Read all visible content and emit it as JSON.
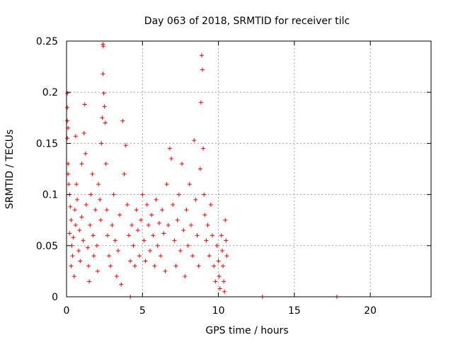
{
  "chart_data": {
    "type": "scatter",
    "title": "Day 063 of 2018, SRMTID for receiver tilc",
    "xlabel": "GPS time / hours",
    "ylabel": "SRMTID / TECUs",
    "xlim": [
      0,
      24
    ],
    "ylim": [
      0,
      0.25
    ],
    "xticks": [
      0,
      5,
      10,
      15,
      20
    ],
    "xtick_labels": [
      "0",
      "5",
      "10",
      "15",
      "20"
    ],
    "yticks": [
      0,
      0.05,
      0.1,
      0.15,
      0.2,
      0.25
    ],
    "ytick_labels": [
      "0",
      "0.05",
      "0.1",
      "0.15",
      "0.2",
      "0.25"
    ],
    "grid": true,
    "marker": "+",
    "color": "#ff0000",
    "series": [
      {
        "name": "SRMTID",
        "points": [
          [
            0.05,
            0.199
          ],
          [
            0.05,
            0.185
          ],
          [
            0.05,
            0.172
          ],
          [
            0.1,
            0.165
          ],
          [
            0.05,
            0.155
          ],
          [
            0.1,
            0.13
          ],
          [
            0.1,
            0.12
          ],
          [
            0.15,
            0.11
          ],
          [
            0.2,
            0.1
          ],
          [
            0.25,
            0.088
          ],
          [
            0.3,
            0.075
          ],
          [
            0.2,
            0.062
          ],
          [
            0.35,
            0.05
          ],
          [
            0.4,
            0.04
          ],
          [
            0.3,
            0.03
          ],
          [
            0.5,
            0.02
          ],
          [
            0.45,
            0.058
          ],
          [
            0.6,
            0.07
          ],
          [
            0.55,
            0.085
          ],
          [
            0.7,
            0.095
          ],
          [
            0.65,
            0.11
          ],
          [
            0.6,
            0.157
          ],
          [
            0.8,
            0.045
          ],
          [
            0.9,
            0.035
          ],
          [
            0.85,
            0.065
          ],
          [
            1.0,
            0.078
          ],
          [
            1.1,
            0.055
          ],
          [
            1.0,
            0.13
          ],
          [
            1.15,
            0.16
          ],
          [
            1.2,
            0.188
          ],
          [
            1.25,
            0.14
          ],
          [
            1.3,
            0.09
          ],
          [
            1.4,
            0.048
          ],
          [
            1.45,
            0.03
          ],
          [
            1.5,
            0.015
          ],
          [
            1.55,
            0.07
          ],
          [
            1.6,
            0.1
          ],
          [
            1.7,
            0.12
          ],
          [
            1.75,
            0.06
          ],
          [
            1.8,
            0.04
          ],
          [
            1.9,
            0.085
          ],
          [
            2.0,
            0.05
          ],
          [
            2.05,
            0.025
          ],
          [
            2.1,
            0.11
          ],
          [
            2.2,
            0.095
          ],
          [
            2.25,
            0.075
          ],
          [
            2.3,
            0.15
          ],
          [
            2.35,
            0.175
          ],
          [
            2.4,
            0.247
          ],
          [
            2.42,
            0.245
          ],
          [
            2.4,
            0.218
          ],
          [
            2.45,
            0.199
          ],
          [
            2.5,
            0.186
          ],
          [
            2.55,
            0.17
          ],
          [
            2.6,
            0.13
          ],
          [
            2.65,
            0.085
          ],
          [
            2.7,
            0.06
          ],
          [
            2.8,
            0.04
          ],
          [
            2.9,
            0.03
          ],
          [
            3.0,
            0.07
          ],
          [
            3.1,
            0.1
          ],
          [
            3.2,
            0.055
          ],
          [
            3.3,
            0.02
          ],
          [
            3.4,
            0.045
          ],
          [
            3.5,
            0.08
          ],
          [
            3.6,
            0.012
          ],
          [
            3.7,
            0.172
          ],
          [
            3.8,
            0.12
          ],
          [
            3.9,
            0.148
          ],
          [
            4.0,
            0.09
          ],
          [
            4.1,
            0.06
          ],
          [
            4.2,
            0.035
          ],
          [
            4.3,
            0.07
          ],
          [
            4.4,
            0.05
          ],
          [
            4.5,
            0.03
          ],
          [
            4.6,
            0.085
          ],
          [
            4.7,
            0.065
          ],
          [
            4.8,
            0.04
          ],
          [
            4.9,
            0.075
          ],
          [
            5.0,
            0.1
          ],
          [
            5.1,
            0.055
          ],
          [
            5.2,
            0.035
          ],
          [
            5.3,
            0.09
          ],
          [
            5.4,
            0.07
          ],
          [
            5.5,
            0.045
          ],
          [
            5.6,
            0.08
          ],
          [
            5.7,
            0.06
          ],
          [
            5.8,
            0.03
          ],
          [
            5.9,
            0.095
          ],
          [
            6.0,
            0.05
          ],
          [
            6.1,
            0.072
          ],
          [
            6.2,
            0.04
          ],
          [
            6.3,
            0.085
          ],
          [
            6.4,
            0.062
          ],
          [
            6.5,
            0.025
          ],
          [
            6.6,
            0.11
          ],
          [
            6.7,
            0.07
          ],
          [
            6.8,
            0.145
          ],
          [
            6.9,
            0.135
          ],
          [
            7.0,
            0.09
          ],
          [
            7.1,
            0.055
          ],
          [
            7.2,
            0.03
          ],
          [
            7.3,
            0.075
          ],
          [
            7.4,
            0.1
          ],
          [
            7.5,
            0.045
          ],
          [
            7.6,
            0.13
          ],
          [
            7.7,
            0.065
          ],
          [
            7.8,
            0.02
          ],
          [
            7.9,
            0.085
          ],
          [
            8.0,
            0.05
          ],
          [
            8.1,
            0.11
          ],
          [
            8.2,
            0.07
          ],
          [
            8.3,
            0.04
          ],
          [
            8.4,
            0.153
          ],
          [
            8.5,
            0.095
          ],
          [
            8.6,
            0.06
          ],
          [
            8.7,
            0.03
          ],
          [
            8.8,
            0.125
          ],
          [
            8.85,
            0.19
          ],
          [
            8.9,
            0.236
          ],
          [
            8.95,
            0.222
          ],
          [
            9.0,
            0.145
          ],
          [
            9.05,
            0.1
          ],
          [
            9.1,
            0.08
          ],
          [
            9.2,
            0.055
          ],
          [
            9.3,
            0.07
          ],
          [
            9.4,
            0.04
          ],
          [
            9.5,
            0.09
          ],
          [
            9.6,
            0.06
          ],
          [
            9.7,
            0.03
          ],
          [
            9.8,
            0.015
          ],
          [
            9.9,
            0.05
          ],
          [
            10.0,
            0.035
          ],
          [
            10.05,
            0.02
          ],
          [
            10.1,
            0.008
          ],
          [
            10.2,
            0.06
          ],
          [
            10.25,
            0.045
          ],
          [
            10.3,
            0.03
          ],
          [
            10.35,
            0.015
          ],
          [
            10.4,
            0.005
          ],
          [
            10.45,
            0.075
          ],
          [
            10.5,
            0.055
          ],
          [
            10.55,
            0.04
          ],
          [
            4.2,
            0.0
          ],
          [
            12.9,
            0.0
          ],
          [
            17.8,
            0.0
          ]
        ]
      }
    ]
  }
}
